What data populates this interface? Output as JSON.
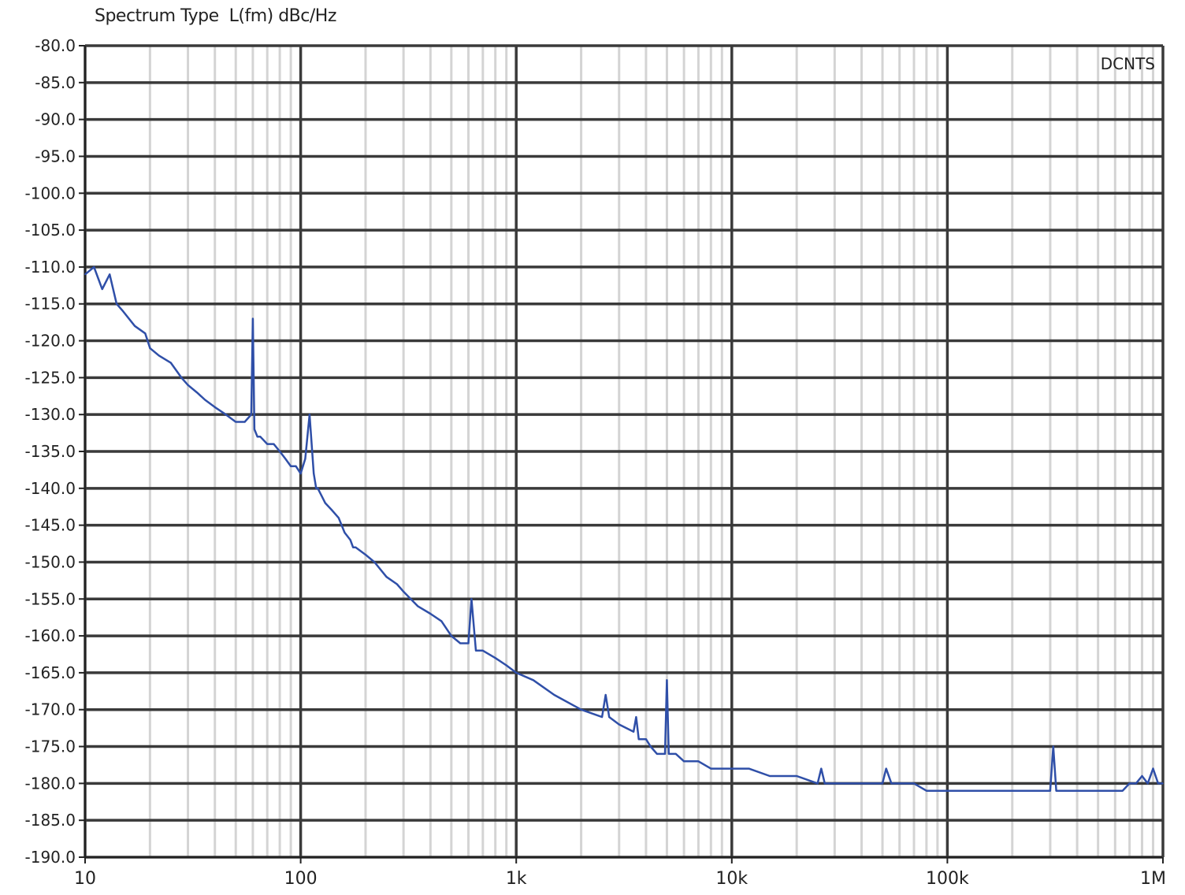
{
  "chart_data": {
    "type": "line",
    "title": "Spectrum Type  L(fm) dBc/Hz",
    "annotation": "DCNTS",
    "xscale": "log",
    "xlim": [
      10,
      1000000
    ],
    "ylim": [
      -190,
      -80
    ],
    "grid": true,
    "x_tick_values": [
      10,
      100,
      1000,
      10000,
      100000,
      1000000
    ],
    "x_tick_labels": [
      "10",
      "100",
      "1k",
      "10k",
      "100k",
      "1M"
    ],
    "y_tick_values": [
      -80,
      -85,
      -90,
      -95,
      -100,
      -105,
      -110,
      -115,
      -120,
      -125,
      -130,
      -135,
      -140,
      -145,
      -150,
      -155,
      -160,
      -165,
      -170,
      -175,
      -180,
      -185,
      -190
    ],
    "y_tick_labels": [
      "-80.0",
      "-85.0",
      "-90.0",
      "-95.0",
      "-100.0",
      "-105.0",
      "-110.0",
      "-115.0",
      "-120.0",
      "-125.0",
      "-130.0",
      "-135.0",
      "-140.0",
      "-145.0",
      "-150.0",
      "-155.0",
      "-160.0",
      "-165.0",
      "-170.0",
      "-175.0",
      "-180.0",
      "-185.0",
      "-190.0"
    ],
    "series": [
      {
        "color": "#2f4fa8",
        "x": [
          10,
          11,
          12,
          13,
          14,
          15,
          17,
          19,
          20,
          22,
          25,
          28,
          30,
          33,
          36,
          40,
          45,
          50,
          55,
          59,
          60,
          61,
          63,
          65,
          70,
          75,
          80,
          85,
          90,
          95,
          100,
          105,
          110,
          115,
          118,
          120,
          125,
          130,
          140,
          150,
          160,
          170,
          175,
          180,
          200,
          220,
          250,
          280,
          300,
          350,
          400,
          450,
          500,
          550,
          600,
          620,
          650,
          700,
          800,
          900,
          1000,
          1200,
          1500,
          2000,
          2500,
          2600,
          2700,
          3000,
          3500,
          3600,
          3700,
          4000,
          4200,
          4500,
          4900,
          5000,
          5100,
          5500,
          6000,
          7000,
          8000,
          10000,
          12000,
          15000,
          20000,
          25000,
          26000,
          27000,
          30000,
          40000,
          50000,
          52000,
          55000,
          60000,
          70000,
          80000,
          100000,
          150000,
          200000,
          250000,
          300000,
          310000,
          320000,
          350000,
          400000,
          500000,
          600000,
          650000,
          700000,
          750000,
          800000,
          850000,
          900000,
          950000,
          1000000
        ],
        "y": [
          -111,
          -110,
          -113,
          -111,
          -115,
          -116,
          -118,
          -119,
          -121,
          -122,
          -123,
          -125,
          -126,
          -127,
          -128,
          -129,
          -130,
          -131,
          -131,
          -130,
          -117,
          -132,
          -133,
          -133,
          -134,
          -134,
          -135,
          -136,
          -137,
          -137,
          -138,
          -136,
          -130,
          -138,
          -140,
          -140,
          -141,
          -142,
          -143,
          -144,
          -146,
          -147,
          -148,
          -148,
          -149,
          -150,
          -152,
          -153,
          -154,
          -156,
          -157,
          -158,
          -160,
          -161,
          -161,
          -155,
          -162,
          -162,
          -163,
          -164,
          -165,
          -166,
          -168,
          -170,
          -171,
          -168,
          -171,
          -172,
          -173,
          -171,
          -174,
          -174,
          -175,
          -176,
          -176,
          -166,
          -176,
          -176,
          -177,
          -177,
          -178,
          -178,
          -178,
          -179,
          -179,
          -180,
          -178,
          -180,
          -180,
          -180,
          -180,
          -178,
          -180,
          -180,
          -180,
          -181,
          -181,
          -181,
          -181,
          -181,
          -181,
          -175,
          -181,
          -181,
          -181,
          -181,
          -181,
          -181,
          -180,
          -180,
          -179,
          -180,
          -178,
          -180,
          -180
        ]
      }
    ]
  }
}
